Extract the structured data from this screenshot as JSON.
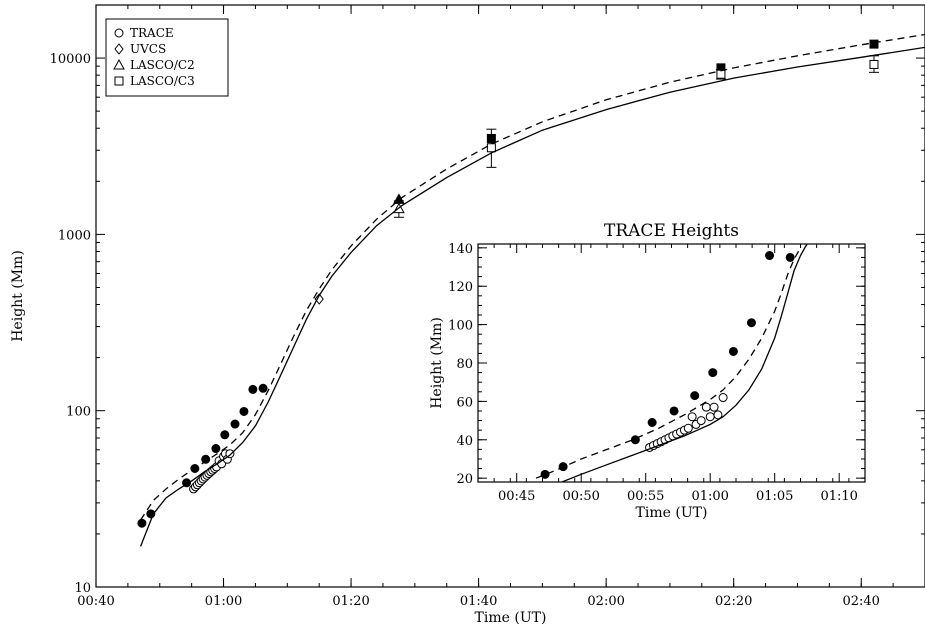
{
  "chart_data": [
    {
      "type": "scatter",
      "xlabel": "Time (UT)",
      "ylabel": "Height (Mm)",
      "x_unit": "minutes after 00:00 UT",
      "xlim": [
        40,
        170
      ],
      "ylim": [
        10,
        20000
      ],
      "y_scale": "log",
      "x_ticks": [
        40,
        60,
        80,
        100,
        120,
        140,
        160
      ],
      "x_tick_labels": [
        "00:40",
        "01:00",
        "01:20",
        "01:40",
        "02:00",
        "02:20",
        "02:40"
      ],
      "y_ticks": [
        10,
        100,
        1000,
        10000
      ],
      "y_tick_labels": [
        "10",
        "100",
        "1000",
        "10000"
      ],
      "legend_position": "top-left",
      "legend": [
        {
          "marker": "circle",
          "label": "TRACE"
        },
        {
          "marker": "diamond",
          "label": "UVCS"
        },
        {
          "marker": "triangle",
          "label": "LASCO/C2"
        },
        {
          "marker": "square",
          "label": "LASCO/C3"
        }
      ],
      "series": [
        {
          "marker": "circle-filled",
          "x": [
            47.2,
            48.6,
            54.2,
            55.5,
            57.2,
            58.8,
            60.2,
            61.8,
            63.2,
            64.6,
            66.2
          ],
          "y": [
            23,
            26,
            39,
            47,
            53,
            61,
            73,
            84,
            99,
            132,
            134
          ]
        },
        {
          "marker": "circle",
          "x": [
            55.3,
            55.6,
            55.9,
            56.2,
            56.5,
            56.8,
            57.1,
            57.4,
            57.7,
            58.0,
            58.3,
            58.6,
            58.9,
            59.3,
            59.7,
            60.0,
            60.3,
            60.6,
            61.0
          ],
          "y": [
            36,
            37,
            38,
            39,
            40,
            41,
            42,
            43,
            44,
            45,
            46,
            47,
            48,
            52,
            50,
            55,
            57,
            53,
            57
          ]
        },
        {
          "marker": "diamond",
          "x": [
            75.0
          ],
          "y": [
            430
          ]
        },
        {
          "marker": "triangle-filled",
          "x": [
            87.5
          ],
          "y": [
            1580
          ]
        },
        {
          "marker": "triangle",
          "x": [
            87.5
          ],
          "y": [
            1400
          ],
          "y_err": [
            [
              1250,
              1550
            ]
          ]
        },
        {
          "marker": "square-filled",
          "x": [
            102.0,
            138.0,
            162.0
          ],
          "y": [
            3500,
            8800,
            12000
          ]
        },
        {
          "marker": "square",
          "x": [
            102.0,
            138.0,
            162.0
          ],
          "y": [
            3100,
            8100,
            9200
          ],
          "y_err": [
            [
              2400,
              3950
            ],
            [
              7600,
              8600
            ],
            [
              8300,
              10300
            ]
          ]
        },
        {
          "style": "solid-line",
          "x": [
            47.0,
            49.0,
            51.0,
            53.0,
            55.0,
            57.0,
            59.0,
            61.0,
            63.0,
            65.0,
            67.0,
            69.0,
            71.0,
            73.0,
            75.0,
            77.0,
            80.0,
            84.0,
            88.0,
            95.0,
            102.0,
            110.0,
            120.0,
            130.0,
            140.0,
            150.0,
            160.0,
            170.0
          ],
          "y": [
            17,
            26,
            32,
            36,
            40,
            45,
            50,
            56,
            66,
            82,
            112,
            160,
            230,
            330,
            450,
            580,
            790,
            1120,
            1460,
            2100,
            2900,
            3900,
            5100,
            6400,
            7700,
            8900,
            10100,
            11500
          ]
        },
        {
          "style": "dashed-line",
          "x": [
            47.0,
            49.0,
            51.0,
            53.0,
            55.0,
            57.0,
            59.0,
            61.0,
            63.0,
            65.0,
            67.0,
            69.0,
            71.0,
            73.0,
            75.0,
            77.0,
            80.0,
            84.0,
            88.0,
            95.0,
            102.0,
            110.0,
            120.0,
            130.0,
            140.0,
            150.0,
            160.0,
            170.0
          ],
          "y": [
            24,
            31,
            36,
            41,
            46,
            51,
            57,
            64,
            75,
            95,
            130,
            185,
            265,
            370,
            490,
            630,
            860,
            1220,
            1620,
            2350,
            3250,
            4350,
            5800,
            7300,
            8800,
            10300,
            11900,
            13600
          ]
        }
      ]
    },
    {
      "type": "scatter",
      "title": "TRACE Heights",
      "xlabel": "Time (UT)",
      "ylabel": "Height (Mm)",
      "x_unit": "minutes after 00:00 UT",
      "xlim": [
        42,
        72
      ],
      "ylim": [
        18,
        142
      ],
      "x_ticks": [
        45,
        50,
        55,
        60,
        65,
        70
      ],
      "x_tick_labels": [
        "00:45",
        "00:50",
        "00:55",
        "01:00",
        "01:05",
        "01:10"
      ],
      "y_ticks": [
        20,
        40,
        60,
        80,
        100,
        120,
        140
      ],
      "y_tick_labels": [
        "20",
        "40",
        "60",
        "80",
        "100",
        "120",
        "140"
      ],
      "series": [
        {
          "marker": "circle-filled",
          "x": [
            47.2,
            48.6,
            54.2,
            55.5,
            57.2,
            58.8,
            60.2,
            61.8,
            63.2,
            64.6,
            66.2
          ],
          "y": [
            22,
            26,
            40,
            49,
            55,
            63,
            75,
            86,
            101,
            136,
            135
          ]
        },
        {
          "marker": "circle",
          "x": [
            55.3,
            55.6,
            55.9,
            56.2,
            56.5,
            56.8,
            57.1,
            57.4,
            57.7,
            58.0,
            58.3,
            58.6,
            58.9,
            59.3,
            59.7,
            60.0,
            60.3,
            60.6,
            61.0
          ],
          "y": [
            36,
            37,
            38,
            39,
            40,
            41,
            42,
            43,
            44,
            45,
            46,
            52,
            48,
            50,
            57,
            52,
            57,
            53,
            62
          ]
        },
        {
          "style": "solid-line",
          "x": [
            48.5,
            50.0,
            52.0,
            54.0,
            56.0,
            58.0,
            59.0,
            60.0,
            61.0,
            62.0,
            63.0,
            64.0,
            65.0,
            65.5,
            66.0,
            66.5,
            67.0,
            67.5
          ],
          "y": [
            18,
            22,
            27,
            32,
            37,
            42,
            45,
            48,
            52,
            58,
            66,
            77,
            93,
            104,
            116,
            128,
            136,
            142
          ]
        },
        {
          "style": "dashed-line",
          "x": [
            46.5,
            48.0,
            50.0,
            52.0,
            54.0,
            56.0,
            58.0,
            60.0,
            61.0,
            62.0,
            63.0,
            64.0,
            65.0,
            65.5,
            66.0,
            66.5,
            67.0
          ],
          "y": [
            20,
            24,
            30,
            35,
            40,
            46,
            53,
            61,
            66,
            73,
            82,
            93,
            107,
            116,
            126,
            134,
            140
          ]
        }
      ]
    }
  ]
}
